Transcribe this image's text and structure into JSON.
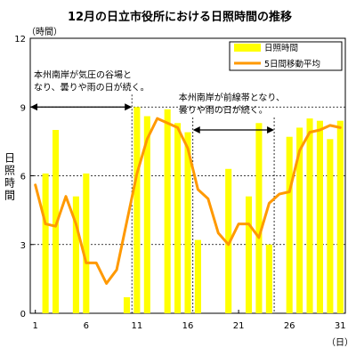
{
  "chart_data": {
    "type": "bar",
    "title": "12月の日立市役所における日照時間の推移",
    "ylabel": "日照時間",
    "yunit": "（時間）",
    "xunit": "（日）",
    "ylim": [
      0,
      12
    ],
    "yticks": [
      "0",
      "3",
      "6",
      "9",
      "12"
    ],
    "xticks": [
      {
        "day": 1,
        "label": "1"
      },
      {
        "day": 6,
        "label": "6"
      },
      {
        "day": 11,
        "label": "11"
      },
      {
        "day": 16,
        "label": "16"
      },
      {
        "day": 21,
        "label": "21"
      },
      {
        "day": 26,
        "label": "26"
      },
      {
        "day": 31,
        "label": "31"
      }
    ],
    "days": [
      1,
      2,
      3,
      4,
      5,
      6,
      7,
      8,
      9,
      10,
      11,
      12,
      13,
      14,
      15,
      16,
      17,
      18,
      19,
      20,
      21,
      22,
      23,
      24,
      25,
      26,
      27,
      28,
      29,
      30,
      31
    ],
    "series": [
      {
        "name": "日照時間",
        "kind": "bar",
        "color": "#ffff00",
        "values": [
          0,
          6.1,
          8.0,
          0,
          5.1,
          6.1,
          0,
          0,
          0,
          0.7,
          9.0,
          8.6,
          0,
          8.9,
          8.3,
          7.9,
          3.2,
          0,
          0,
          6.3,
          0,
          5.1,
          8.3,
          3.0,
          0,
          7.7,
          8.1,
          8.5,
          8.4,
          7.6,
          8.4
        ]
      },
      {
        "name": "5日間移動平均",
        "kind": "line",
        "color": "#ff9900",
        "values": [
          5.6,
          3.9,
          3.8,
          5.1,
          3.9,
          2.2,
          2.2,
          1.3,
          1.9,
          4.0,
          6.1,
          7.6,
          8.5,
          8.3,
          8.1,
          7.2,
          5.4,
          5.0,
          3.5,
          3.0,
          3.9,
          3.9,
          3.3,
          4.8,
          5.2,
          5.3,
          7.1,
          7.9,
          8.0,
          8.2,
          8.1
        ]
      }
    ],
    "legend_position": "top-right",
    "grid": "dashed horizontal lines at 3, 6, 9",
    "annotations": [
      {
        "lines": [
          "本州南岸が気圧の谷場と",
          "なり、曇りや雨の日が続く。"
        ],
        "from_day": 1,
        "to_day": 10,
        "level": 9
      },
      {
        "lines": [
          "本州南岸が前線帯となり、",
          "曇りや雨の日が続く。"
        ],
        "from_day": 17,
        "to_day": 24,
        "level": 8
      }
    ]
  }
}
